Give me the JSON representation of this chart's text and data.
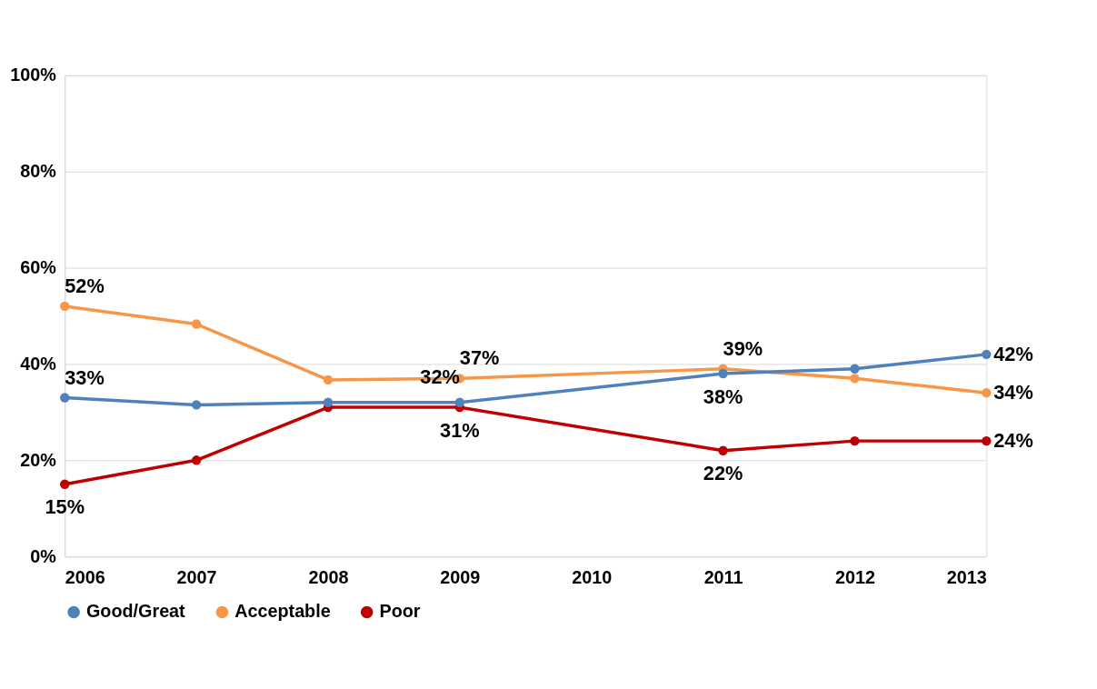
{
  "chart_data": {
    "type": "line",
    "x": [
      2006,
      2007,
      2008,
      2009,
      2011,
      2012,
      2013
    ],
    "xlim": [
      2006,
      2013
    ],
    "xticks": [
      2006,
      2007,
      2008,
      2009,
      2010,
      2011,
      2012,
      2013
    ],
    "ylim": [
      0,
      100
    ],
    "yticks": [
      {
        "value": 0,
        "label": "0%"
      },
      {
        "value": 20,
        "label": "20%"
      },
      {
        "value": 40,
        "label": "40%"
      },
      {
        "value": 60,
        "label": "60%"
      },
      {
        "value": 80,
        "label": "80%"
      },
      {
        "value": 100,
        "label": "100%"
      }
    ],
    "series": [
      {
        "name": "Good/Great",
        "color": "#4f81bd",
        "values": [
          33,
          31.5,
          32,
          32,
          38,
          39,
          42
        ],
        "value_labels": [
          "33%",
          null,
          null,
          "32%",
          "38%",
          null,
          "42%"
        ]
      },
      {
        "name": "Acceptable",
        "color": "#f79646",
        "values": [
          52,
          48.3,
          36.7,
          37,
          39,
          37,
          34
        ],
        "value_labels": [
          "52%",
          null,
          null,
          "37%",
          "39%",
          null,
          "34%"
        ]
      },
      {
        "name": "Poor",
        "color": "#c00000",
        "values": [
          15,
          20,
          31,
          31,
          22,
          24,
          24
        ],
        "value_labels": [
          "15%",
          null,
          null,
          "31%",
          "22%",
          null,
          "24%"
        ]
      }
    ],
    "grid": "y",
    "legend": "bottom",
    "marker": "circle",
    "line_style": "solid"
  }
}
